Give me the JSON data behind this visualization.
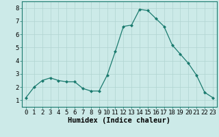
{
  "x": [
    0,
    1,
    2,
    3,
    4,
    5,
    6,
    7,
    8,
    9,
    10,
    11,
    12,
    13,
    14,
    15,
    16,
    17,
    18,
    19,
    20,
    21,
    22,
    23
  ],
  "y": [
    1.2,
    2.0,
    2.5,
    2.7,
    2.5,
    2.4,
    2.4,
    1.9,
    1.7,
    1.7,
    2.9,
    4.7,
    6.6,
    6.7,
    7.9,
    7.8,
    7.2,
    6.6,
    5.2,
    4.5,
    3.8,
    2.9,
    1.6,
    1.2
  ],
  "xlabel": "Humidex (Indice chaleur)",
  "ylim": [
    0.5,
    8.5
  ],
  "xlim": [
    -0.5,
    23.5
  ],
  "yticks": [
    1,
    2,
    3,
    4,
    5,
    6,
    7,
    8
  ],
  "xticks": [
    0,
    1,
    2,
    3,
    4,
    5,
    6,
    7,
    8,
    9,
    10,
    11,
    12,
    13,
    14,
    15,
    16,
    17,
    18,
    19,
    20,
    21,
    22,
    23
  ],
  "line_color": "#1a7a6e",
  "marker_color": "#1a7a6e",
  "bg_color": "#cceae8",
  "grid_color": "#b0d4d0",
  "spine_color": "#1a7a6e",
  "tick_label_fontsize": 6.5,
  "xlabel_fontsize": 7.5
}
